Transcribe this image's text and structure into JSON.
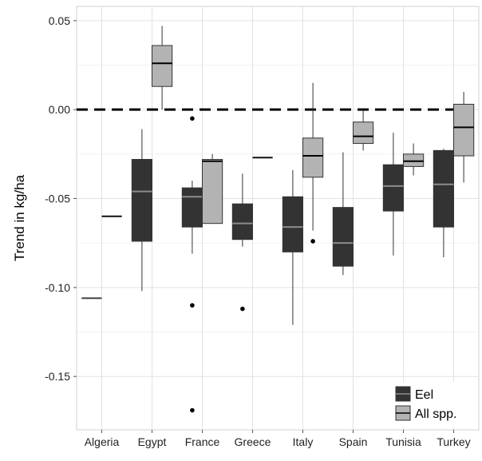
{
  "chart_data": {
    "type": "boxplot",
    "title": "",
    "xlabel": "",
    "ylabel": "Trend in kg/ha",
    "ylim": [
      -0.18,
      0.058
    ],
    "y_ticks": [
      0.05,
      0.0,
      -0.05,
      -0.1,
      -0.15
    ],
    "y_tick_labels": [
      "0.05",
      "0.00",
      "-0.05",
      "-0.10",
      "-0.15"
    ],
    "categories": [
      "Algeria",
      "Egypt",
      "France",
      "Greece",
      "Italy",
      "Spain",
      "Tunisia",
      "Turkey"
    ],
    "grid": true,
    "reference_line": {
      "y": 0.0,
      "style": "dashed"
    },
    "legend": {
      "position": "bottom-right",
      "entries": [
        {
          "name": "Eel",
          "color": "#333333"
        },
        {
          "name": "All spp.",
          "color": "#b3b3b3"
        }
      ]
    },
    "series": [
      {
        "name": "Eel",
        "color": "#333333",
        "median_color": "#8c8c8c",
        "boxes": [
          {
            "category": "Algeria",
            "min": -0.106,
            "q1": -0.106,
            "median": -0.106,
            "q3": -0.106,
            "max": -0.106,
            "outliers": []
          },
          {
            "category": "Egypt",
            "min": -0.102,
            "q1": -0.074,
            "median": -0.046,
            "q3": -0.028,
            "max": -0.011,
            "outliers": []
          },
          {
            "category": "France",
            "min": -0.081,
            "q1": -0.066,
            "median": -0.049,
            "q3": -0.044,
            "max": -0.04,
            "outliers": [
              -0.005,
              -0.11,
              -0.169
            ]
          },
          {
            "category": "Greece",
            "min": -0.077,
            "q1": -0.073,
            "median": -0.064,
            "q3": -0.053,
            "max": -0.036,
            "outliers": [
              -0.112
            ]
          },
          {
            "category": "Italy",
            "min": -0.121,
            "q1": -0.08,
            "median": -0.066,
            "q3": -0.049,
            "max": -0.034,
            "outliers": []
          },
          {
            "category": "Spain",
            "min": -0.093,
            "q1": -0.088,
            "median": -0.075,
            "q3": -0.055,
            "max": -0.024,
            "outliers": []
          },
          {
            "category": "Tunisia",
            "min": -0.082,
            "q1": -0.057,
            "median": -0.043,
            "q3": -0.031,
            "max": -0.013,
            "outliers": []
          },
          {
            "category": "Turkey",
            "min": -0.083,
            "q1": -0.066,
            "median": -0.042,
            "q3": -0.023,
            "max": -0.022,
            "outliers": []
          }
        ]
      },
      {
        "name": "All spp.",
        "color": "#b3b3b3",
        "median_color": "#000000",
        "boxes": [
          {
            "category": "Algeria",
            "min": -0.06,
            "q1": -0.06,
            "median": -0.06,
            "q3": -0.06,
            "max": -0.06,
            "outliers": []
          },
          {
            "category": "Egypt",
            "min": 0.0,
            "q1": 0.013,
            "median": 0.026,
            "q3": 0.036,
            "max": 0.047,
            "outliers": []
          },
          {
            "category": "France",
            "min": -0.064,
            "q1": -0.064,
            "median": -0.029,
            "q3": -0.028,
            "max": -0.025,
            "outliers": []
          },
          {
            "category": "Greece",
            "min": -0.027,
            "q1": -0.027,
            "median": -0.027,
            "q3": -0.027,
            "max": -0.027,
            "outliers": []
          },
          {
            "category": "Italy",
            "min": -0.068,
            "q1": -0.038,
            "median": -0.026,
            "q3": -0.016,
            "max": 0.015,
            "outliers": [
              -0.074
            ]
          },
          {
            "category": "Spain",
            "min": -0.023,
            "q1": -0.019,
            "median": -0.015,
            "q3": -0.007,
            "max": 0.0,
            "outliers": []
          },
          {
            "category": "Tunisia",
            "min": -0.037,
            "q1": -0.032,
            "median": -0.029,
            "q3": -0.025,
            "max": -0.019,
            "outliers": []
          },
          {
            "category": "Turkey",
            "min": -0.041,
            "q1": -0.026,
            "median": -0.01,
            "q3": 0.003,
            "max": 0.01,
            "outliers": []
          }
        ]
      }
    ]
  }
}
